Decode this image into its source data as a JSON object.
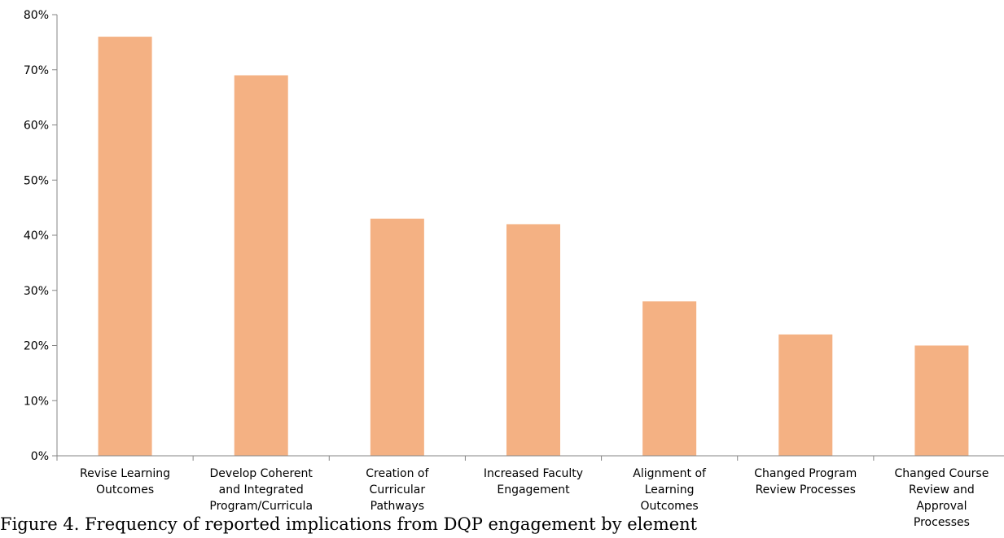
{
  "chart_data": {
    "type": "bar",
    "categories": [
      [
        "Revise Learning",
        "Outcomes"
      ],
      [
        "Develop Coherent",
        "and Integrated",
        "Program/Curricula"
      ],
      [
        "Creation of",
        "Curricular",
        "Pathways"
      ],
      [
        "Increased Faculty",
        "Engagement"
      ],
      [
        "Alignment of",
        "Learning",
        "Outcomes"
      ],
      [
        "Changed Program",
        "Review Processes"
      ],
      [
        "Changed Course",
        "Review and",
        "Approval",
        "Processes"
      ]
    ],
    "values": [
      76,
      69,
      43,
      42,
      28,
      22,
      20
    ],
    "ylim": [
      0,
      80
    ],
    "yticks": [
      "0%",
      "10%",
      "20%",
      "30%",
      "40%",
      "50%",
      "60%",
      "70%",
      "80%"
    ],
    "bar_color": "#f4b183",
    "grid": false,
    "title": "",
    "xlabel": "",
    "ylabel": ""
  },
  "caption": "Figure 4. Frequency of reported implications from DQP engagement by element"
}
